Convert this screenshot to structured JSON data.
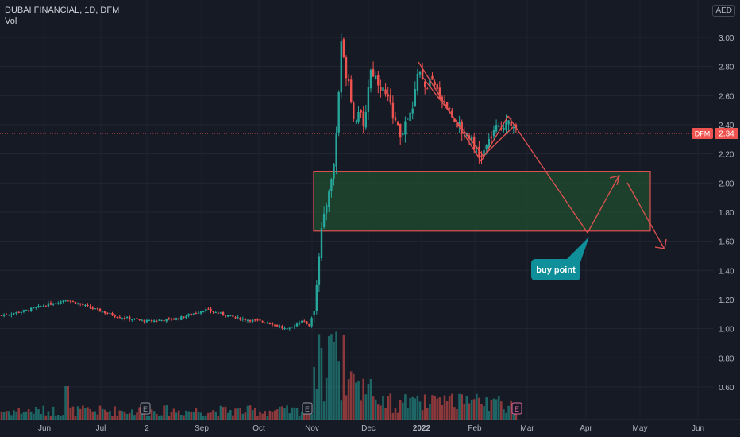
{
  "header": {
    "symbol_line": "DUBAI FINANCIAL, 1D, DFM",
    "volume_label": "Vol",
    "currency": "AED"
  },
  "price_tag": {
    "exchange": "DFM",
    "value": "2.34"
  },
  "annotation": {
    "label": "buy point"
  },
  "colors": {
    "background": "#161a25",
    "up": "#26a69a",
    "down": "#ef5350",
    "zone_fill": "#1f4d2d",
    "zone_border": "#e05252",
    "callout": "#0f8f9a",
    "price_line": "#ef5350"
  },
  "chart_data": {
    "type": "candlestick",
    "title": "DUBAI FINANCIAL, 1D, DFM",
    "y_axis": {
      "ticks": [
        "3.00",
        "2.80",
        "2.60",
        "2.40",
        "2.20",
        "2.00",
        "1.80",
        "1.60",
        "1.40",
        "1.20",
        "1.00",
        "0.80",
        "0.60"
      ],
      "ylim": [
        0.45,
        3.1
      ],
      "unit": "AED"
    },
    "x_axis": {
      "ticks": [
        "Jun",
        "Jul",
        "2",
        "Sep",
        "Oct",
        "Nov",
        "Dec",
        "2022",
        "Feb",
        "Mar",
        "Apr",
        "May",
        "Jun"
      ]
    },
    "last_price": 2.34,
    "grid": true,
    "segments": [
      {
        "start": "May 2021",
        "end": "early Jul 2021",
        "low": 1.06,
        "high": 1.22,
        "trend": "flat"
      },
      {
        "start": "Jul 2021",
        "end": "late Oct 2021",
        "low": 0.98,
        "high": 1.15,
        "trend": "slightly down"
      },
      {
        "start": "early Nov 2021",
        "end": "mid Nov 2021",
        "low": 1.0,
        "high": 3.04,
        "trend": "sharp rally"
      },
      {
        "start": "mid Nov 2021",
        "end": "Jan 2022",
        "low": 2.25,
        "high": 2.85,
        "trend": "range"
      },
      {
        "start": "Jan 2022",
        "end": "Feb 2022",
        "low": 2.15,
        "high": 2.84,
        "trend": "down"
      },
      {
        "start": "Feb 2022",
        "end": "late Feb 2022",
        "low": 2.15,
        "high": 2.47,
        "trend": "rebound"
      }
    ],
    "zone": {
      "price_low": 1.67,
      "price_high": 2.08,
      "start": "early Nov 2021",
      "end": "late Apr 2022"
    },
    "projection_path": [
      {
        "date": "late Feb 2022",
        "price": 2.47
      },
      {
        "date": "early Apr 2022",
        "price": 1.67
      },
      {
        "date": "late Apr 2022",
        "price": 2.06
      },
      {
        "date": "mid May 2022",
        "price": 1.56
      }
    ],
    "volume_events": [
      "E",
      "E",
      "E"
    ]
  }
}
